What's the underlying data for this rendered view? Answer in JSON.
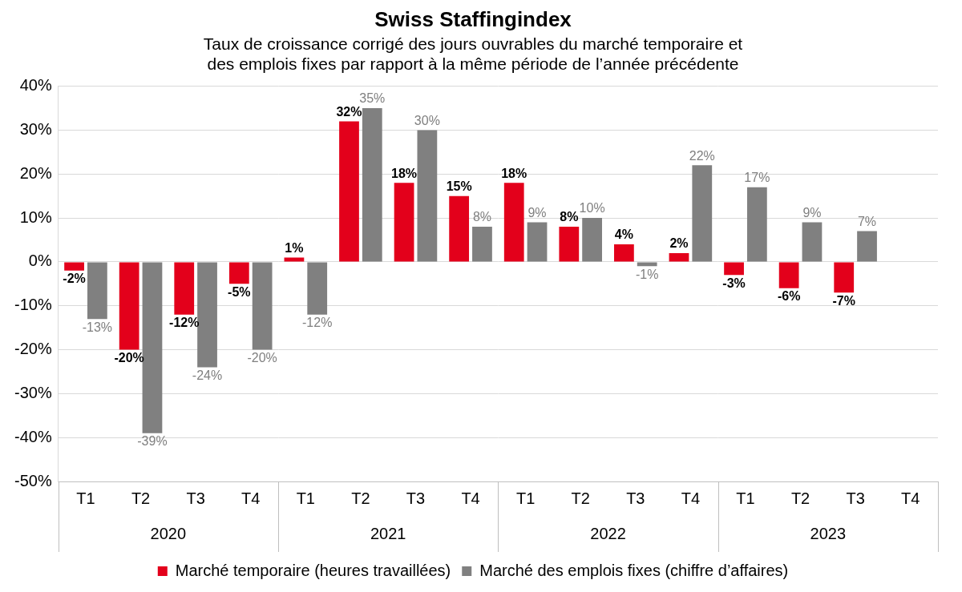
{
  "chart_data": {
    "type": "bar",
    "title": "Swiss Staffingindex",
    "subtitle": [
      "Taux de croissance corrigé des jours ouvrables du marché temporaire et",
      "des emplois fixes par rapport à la même période de l’année précédente"
    ],
    "categories": [
      "T1",
      "T2",
      "T3",
      "T4",
      "T1",
      "T2",
      "T3",
      "T4",
      "T1",
      "T2",
      "T3",
      "T4",
      "T1",
      "T2",
      "T3",
      "T4"
    ],
    "category_groups": [
      "2020",
      "2021",
      "2022",
      "2023"
    ],
    "series": [
      {
        "name": "Marché temporaire (heures travaillées)",
        "color": "#e3001b",
        "values": [
          -2,
          -20,
          -12,
          -5,
          1,
          32,
          18,
          15,
          18,
          8,
          4,
          2,
          -3,
          -6,
          -7,
          null
        ],
        "value_labels": [
          "-2%",
          "-20%",
          "-12%",
          "-5%",
          "1%",
          "32%",
          "18%",
          "15%",
          "18%",
          "8%",
          "4%",
          "2%",
          "-3%",
          "-6%",
          "-7%",
          null
        ]
      },
      {
        "name": "Marché des emplois fixes (chiffre d’affaires)",
        "color": "#808080",
        "values": [
          -13,
          -39,
          -24,
          -20,
          -12,
          35,
          30,
          8,
          9,
          10,
          -1,
          22,
          17,
          9,
          7,
          null
        ],
        "value_labels": [
          "-13%",
          "-39%",
          "-24%",
          "-20%",
          "-12%",
          "35%",
          "30%",
          "8%",
          "9%",
          "10%",
          "-1%",
          "22%",
          "17%",
          "9%",
          "7%",
          null
        ]
      }
    ],
    "ylim": [
      -50,
      40
    ],
    "yticks": [
      {
        "value": -50,
        "label": "-50%"
      },
      {
        "value": -40,
        "label": "-40%"
      },
      {
        "value": -30,
        "label": "-30%"
      },
      {
        "value": -20,
        "label": "-20%"
      },
      {
        "value": -10,
        "label": "-10%"
      },
      {
        "value": 0,
        "label": "0%"
      },
      {
        "value": 10,
        "label": "10%"
      },
      {
        "value": 20,
        "label": "20%"
      },
      {
        "value": 30,
        "label": "30%"
      },
      {
        "value": 40,
        "label": "40%"
      }
    ],
    "grid": true,
    "legend": "bottom",
    "data_labels": true
  }
}
